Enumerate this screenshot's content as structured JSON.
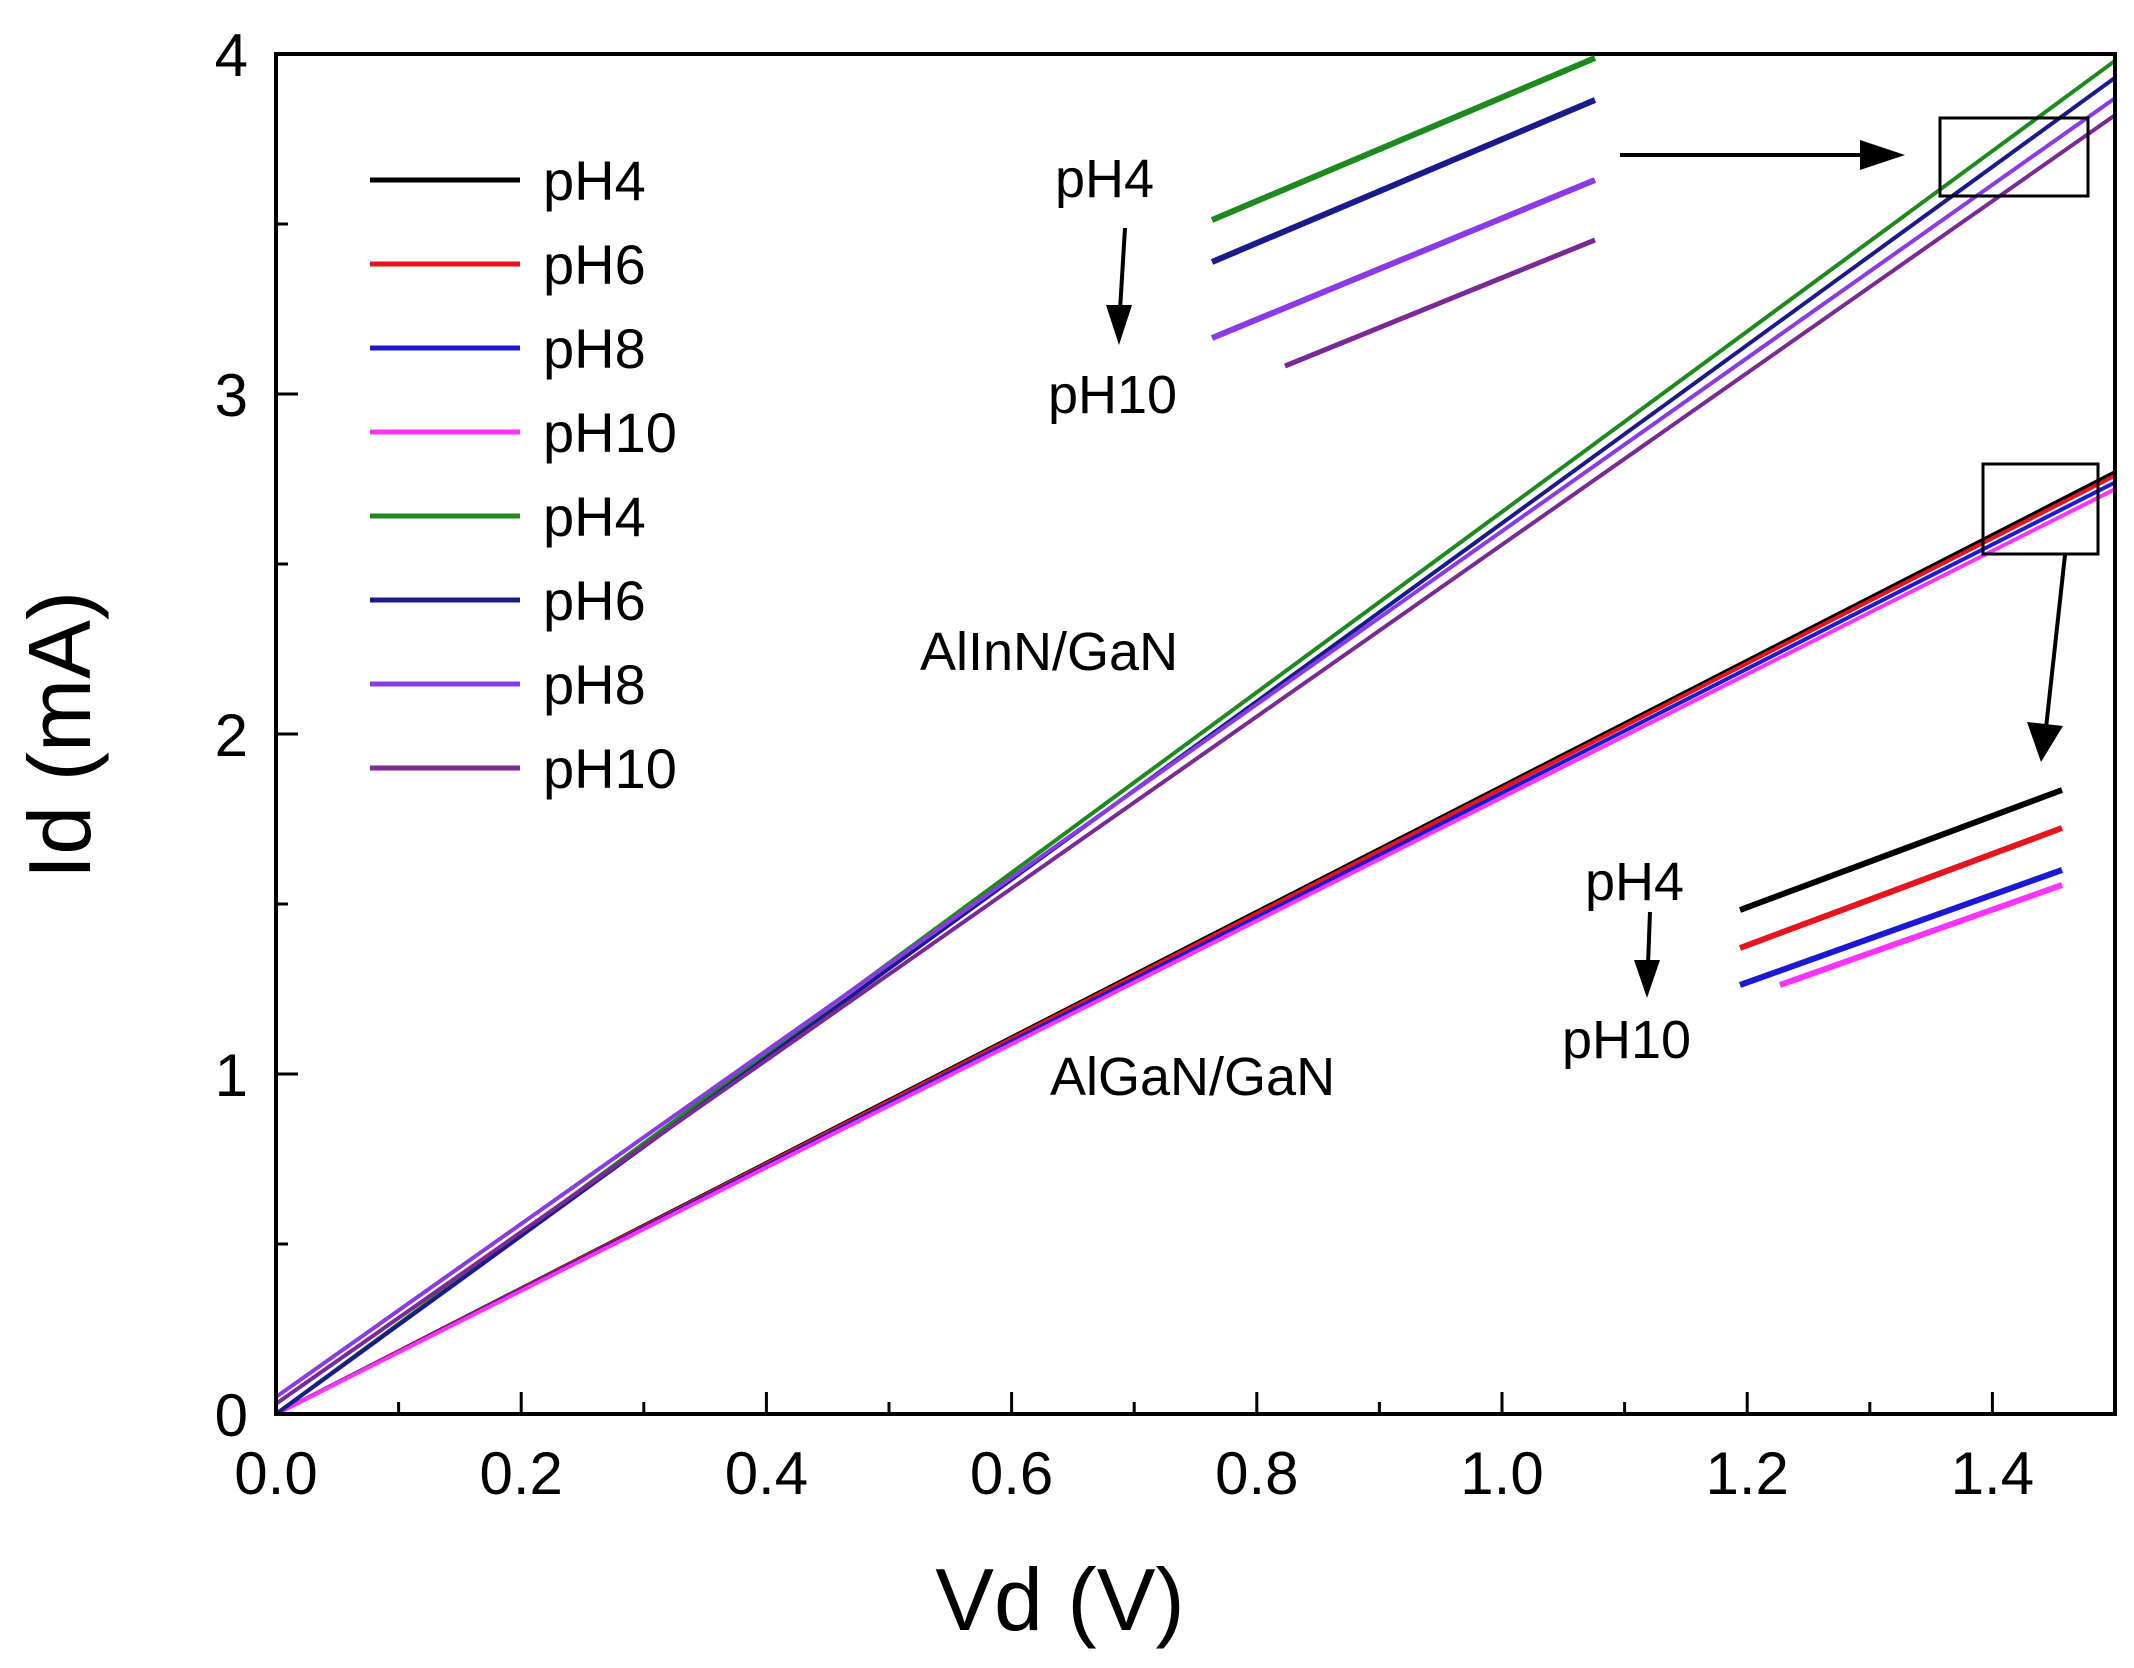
{
  "chart_data": {
    "type": "line",
    "xlabel": "Vd (V)",
    "ylabel": "Id (mA)",
    "xlim": [
      0.0,
      1.5
    ],
    "ylim": [
      0,
      4
    ],
    "x_ticks": [
      "0.0",
      "0.2",
      "0.4",
      "0.6",
      "0.8",
      "1.0",
      "1.2",
      "1.4"
    ],
    "y_ticks": [
      "0",
      "1",
      "2",
      "3",
      "4"
    ],
    "grid": false,
    "legend_position": "top-left",
    "series": [
      {
        "name": "pH4",
        "color": "#000000",
        "x": [
          0.0,
          1.5
        ],
        "y": [
          0.0,
          2.77
        ]
      },
      {
        "name": "pH6",
        "color": "#e8141d",
        "x": [
          0.0,
          1.5
        ],
        "y": [
          0.0,
          2.76
        ]
      },
      {
        "name": "pH8",
        "color": "#1a1ad6",
        "x": [
          0.0,
          1.5
        ],
        "y": [
          0.0,
          2.74
        ]
      },
      {
        "name": "pH10",
        "color": "#ff33ff",
        "x": [
          0.0,
          1.5
        ],
        "y": [
          0.0,
          2.72
        ]
      },
      {
        "name": "pH4",
        "color": "#1e8a1e",
        "x": [
          0.0,
          1.5
        ],
        "y": [
          0.0,
          3.98
        ]
      },
      {
        "name": "pH6",
        "color": "#1a1a8c",
        "x": [
          0.0,
          1.5
        ],
        "y": [
          0.0,
          3.93
        ]
      },
      {
        "name": "pH8",
        "color": "#8a3ae8",
        "x": [
          0.0,
          1.5
        ],
        "y": [
          0.05,
          3.87
        ]
      },
      {
        "name": "pH10",
        "color": "#7a2a96",
        "x": [
          0.0,
          1.5
        ],
        "y": [
          0.03,
          3.82
        ]
      }
    ],
    "annotations": {
      "alinn": "AlInN/GaN",
      "algan": "AlGaN/GaN",
      "inset_top_start": "pH4",
      "inset_top_end": "pH10",
      "inset_bottom_start": "pH4",
      "inset_bottom_end": "pH10"
    }
  }
}
